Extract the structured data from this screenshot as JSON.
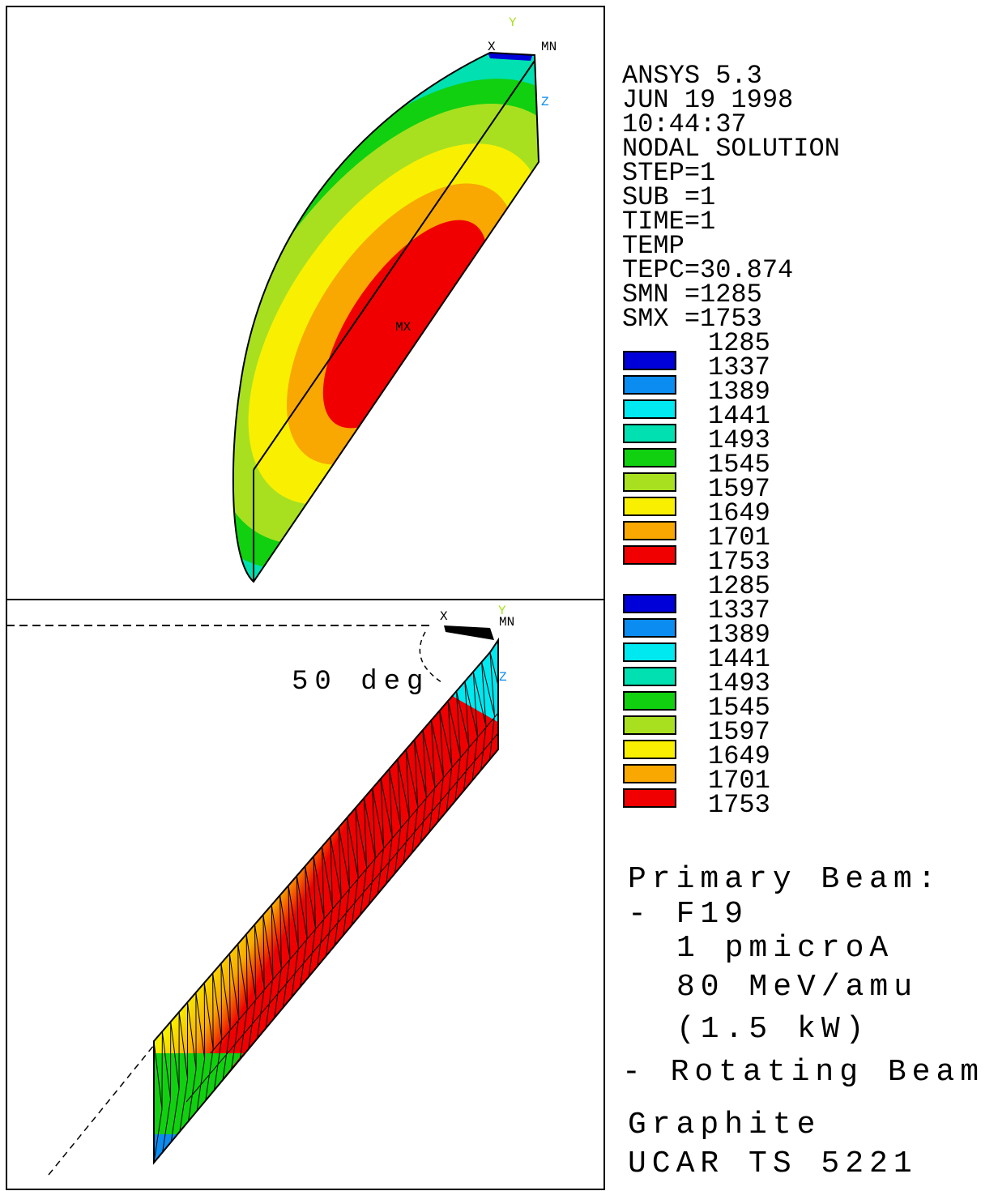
{
  "header": {
    "lines": [
      "ANSYS 5.3",
      "JUN 19 1998",
      "10:44:37",
      "NODAL SOLUTION",
      "STEP=1",
      "SUB =1",
      "TIME=1",
      "TEMP",
      "TEPC=30.874",
      "SMN =1285",
      "SMX =1753"
    ]
  },
  "legend_colors": [
    "#0000d8",
    "#0a8cf0",
    "#00e8f0",
    "#00e0b0",
    "#10d010",
    "#a8e020",
    "#f8f000",
    "#f8a800",
    "#f00000"
  ],
  "legends": [
    {
      "values": [
        1285,
        1337,
        1389,
        1441,
        1493,
        1545,
        1597,
        1649,
        1701,
        1753
      ]
    },
    {
      "values": [
        1285,
        1337,
        1389,
        1441,
        1493,
        1545,
        1597,
        1649,
        1701,
        1753
      ]
    }
  ],
  "top_view": {
    "labels": {
      "y": "Y",
      "x": "X",
      "min": "MN",
      "z": "Z",
      "max": "MX"
    }
  },
  "bottom_view": {
    "labels": {
      "x": "X",
      "y": "Y",
      "min": "MN",
      "z": "Z"
    },
    "angle": "50 deg"
  },
  "notes": [
    "Primary Beam:",
    "- F19",
    "1 pmicroA",
    "80 MeV/amu",
    "(1.5 kW)",
    "- Rotating Beam",
    "Graphite",
    "UCAR TS 5221"
  ]
}
